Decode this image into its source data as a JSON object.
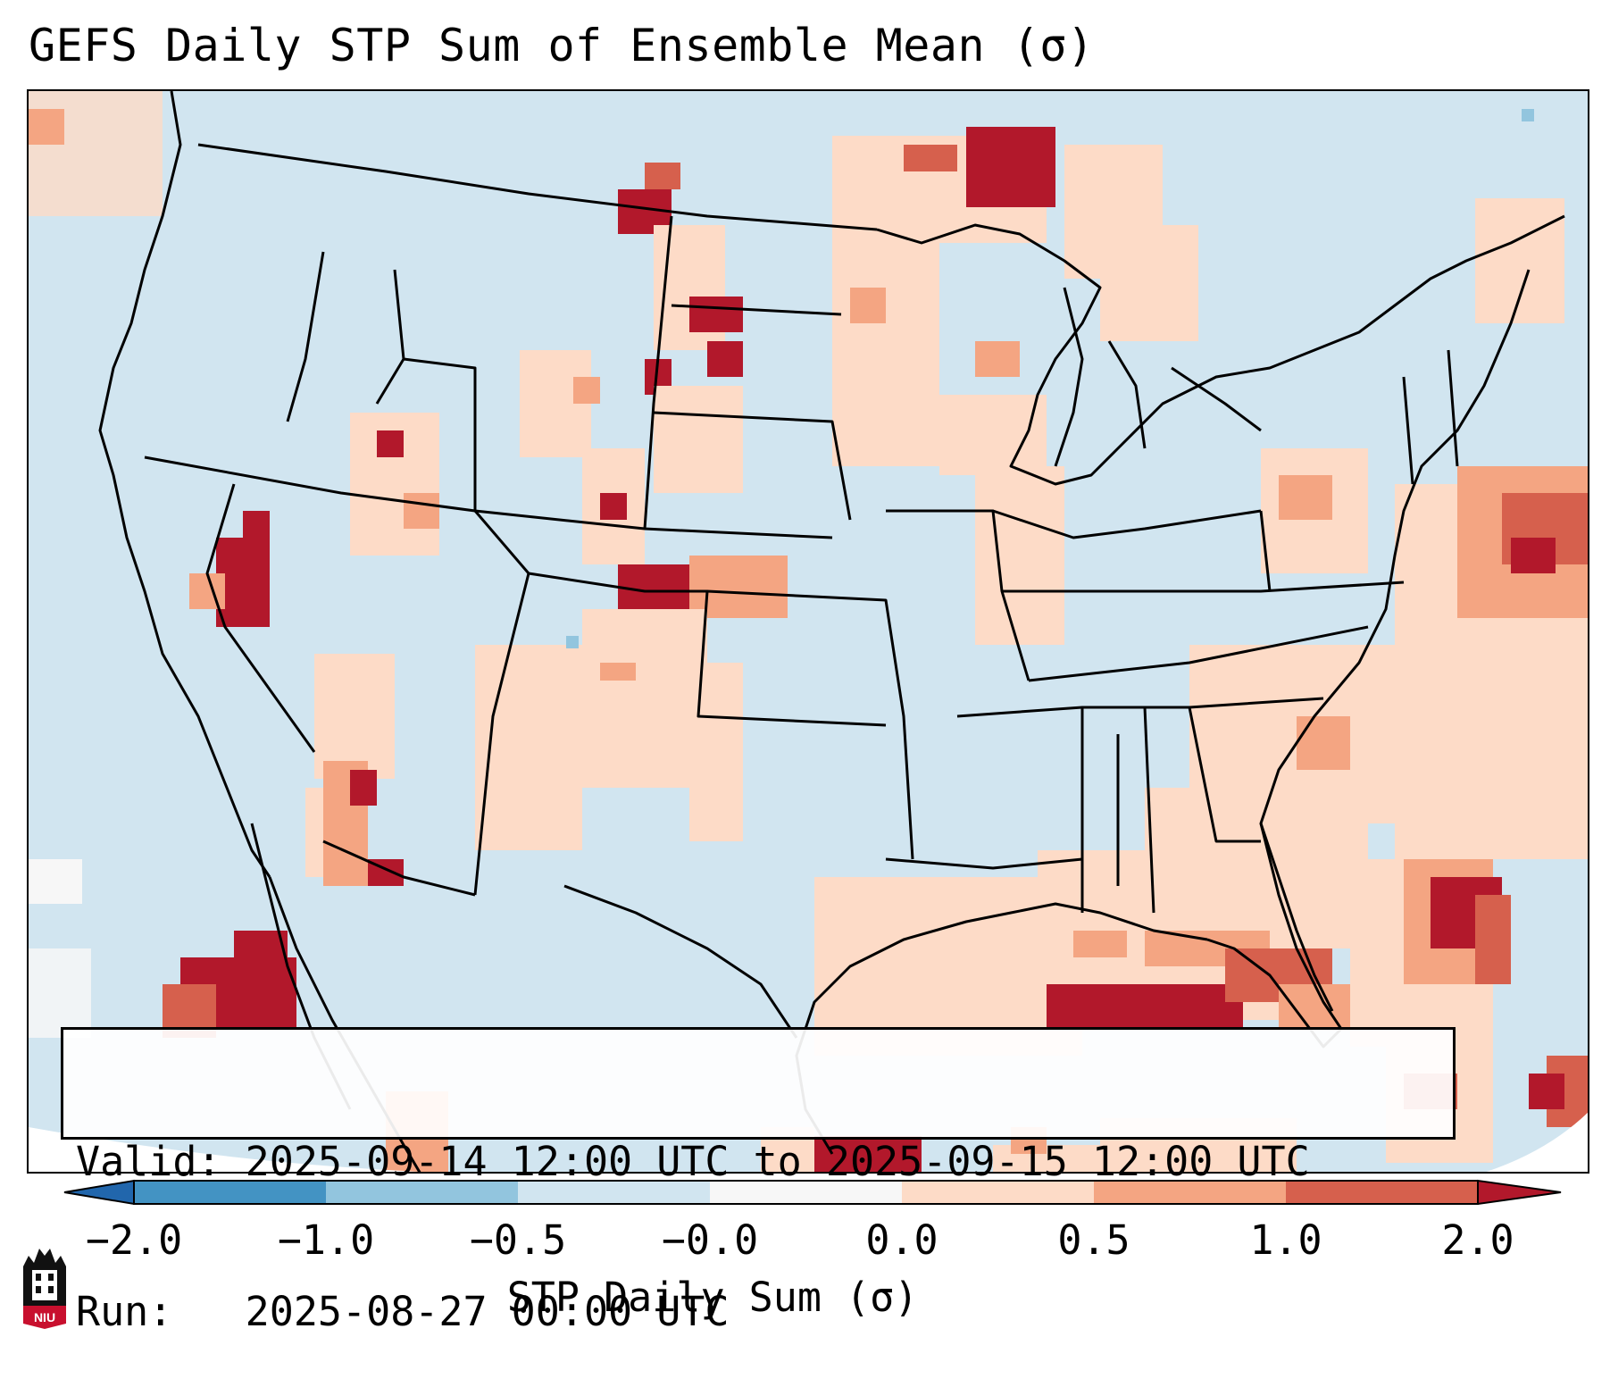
{
  "title": "GEFS Daily STP Sum of Ensemble Mean (σ)",
  "info": {
    "valid_line": "Valid: 2025-09-14 12:00 UTC to 2025-09-15 12:00 UTC",
    "run_line": "Run:   2025-08-27 00:00 UTC"
  },
  "colorbar": {
    "label": "STP Daily Sum (σ)",
    "ticks": [
      "−2.0",
      "−1.0",
      "−0.5",
      "−0.0",
      "0.0",
      "0.5",
      "1.0",
      "2.0"
    ],
    "colors": [
      "#2166ac",
      "#4393c3",
      "#92c5de",
      "#d1e5f0",
      "#f7f7f7",
      "#fddbc7",
      "#f4a582",
      "#d6604d",
      "#b2182b"
    ]
  },
  "map": {
    "background_color": "#d1e5f0",
    "field_levels": [
      "< -2.0",
      "-2.0 to -1.0",
      "-1.0 to -0.5",
      "-0.5 to 0",
      "0 to 0.5",
      "0.5 to 1.0",
      "1.0 to 2.0",
      "> 2.0"
    ]
  },
  "logo": {
    "text": "NIU",
    "color": "#c8102e"
  }
}
